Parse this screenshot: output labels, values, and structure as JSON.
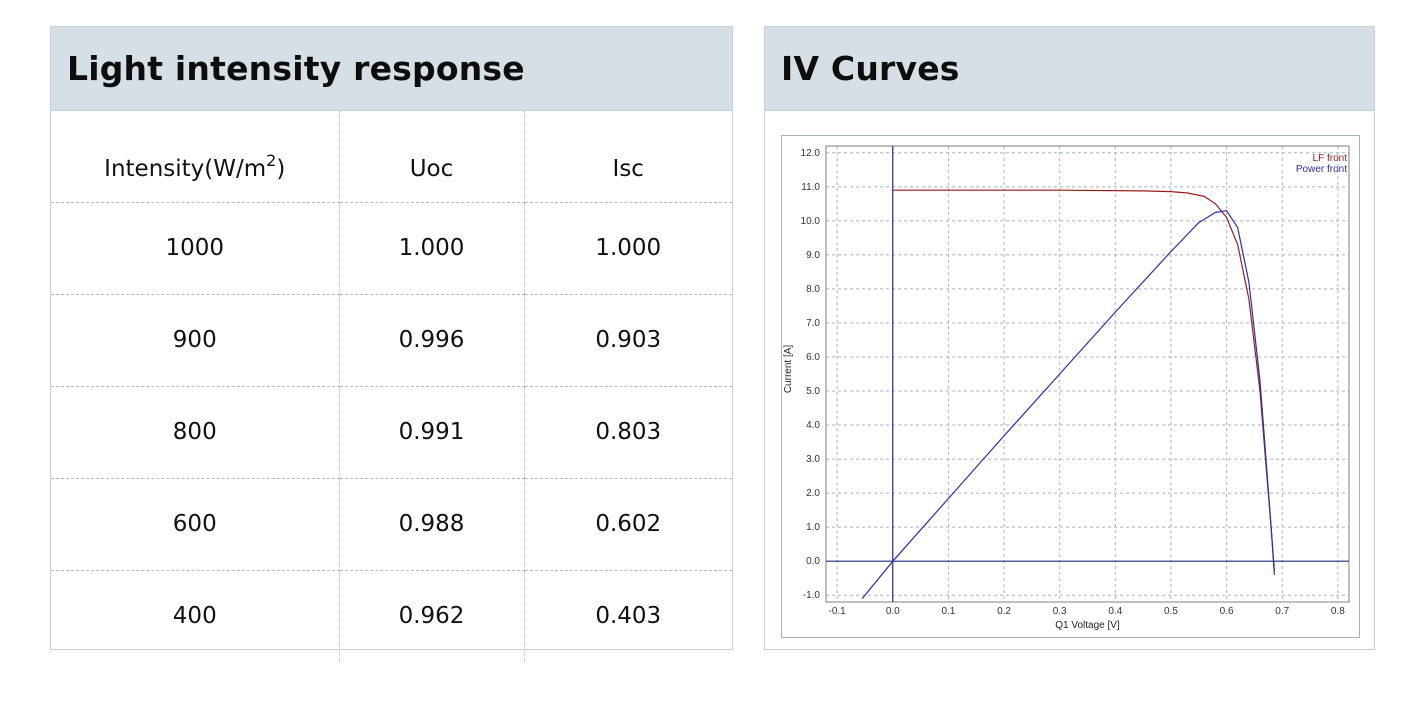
{
  "left_panel": {
    "title": "Light intensity response",
    "columns": [
      "Intensity(W/m",
      "2",
      ")",
      "Uoc",
      "Isc"
    ],
    "rows": [
      [
        "1000",
        "1.000",
        "1.000"
      ],
      [
        "900",
        "0.996",
        "0.903"
      ],
      [
        "800",
        "0.991",
        "0.803"
      ],
      [
        "600",
        "0.988",
        "0.602"
      ],
      [
        "400",
        "0.962",
        "0.403"
      ]
    ]
  },
  "right_panel": {
    "title": "IV Curves"
  },
  "chart_data": {
    "type": "line",
    "xlabel": "Q1 Voltage [V]",
    "ylabel": "Current [A]",
    "xlim": [
      -0.12,
      0.82
    ],
    "ylim": [
      -1.2,
      12.2
    ],
    "grid": true,
    "legend_position": "top-right",
    "x_ticks": [
      "-0.1",
      "0.0",
      "0.1",
      "0.2",
      "0.3",
      "0.4",
      "0.5",
      "0.6",
      "0.7",
      "0.8"
    ],
    "y_ticks": [
      "-1.0",
      "0.0",
      "1.0",
      "2.0",
      "3.0",
      "4.0",
      "5.0",
      "6.0",
      "7.0",
      "8.0",
      "9.0",
      "10.0",
      "11.0",
      "12.0"
    ],
    "series": [
      {
        "name": "LF front",
        "color": "#9b1b1b",
        "x": [
          0.0,
          0.3,
          0.45,
          0.5,
          0.53,
          0.56,
          0.58,
          0.6,
          0.62,
          0.64,
          0.66,
          0.67,
          0.68,
          0.686
        ],
        "y": [
          10.9,
          10.9,
          10.88,
          10.86,
          10.82,
          10.72,
          10.5,
          10.1,
          9.3,
          7.7,
          5.0,
          3.0,
          1.0,
          -0.4
        ]
      },
      {
        "name": "Power front",
        "color": "#2e2ea8",
        "x": [
          -0.055,
          0.0,
          0.1,
          0.2,
          0.3,
          0.4,
          0.5,
          0.55,
          0.58,
          0.6,
          0.62,
          0.64,
          0.66,
          0.67,
          0.68,
          0.686
        ],
        "y": [
          -1.1,
          0.0,
          1.84,
          3.68,
          5.5,
          7.32,
          9.1,
          9.95,
          10.25,
          10.3,
          9.8,
          8.2,
          5.3,
          3.2,
          1.0,
          -0.3
        ]
      }
    ]
  }
}
